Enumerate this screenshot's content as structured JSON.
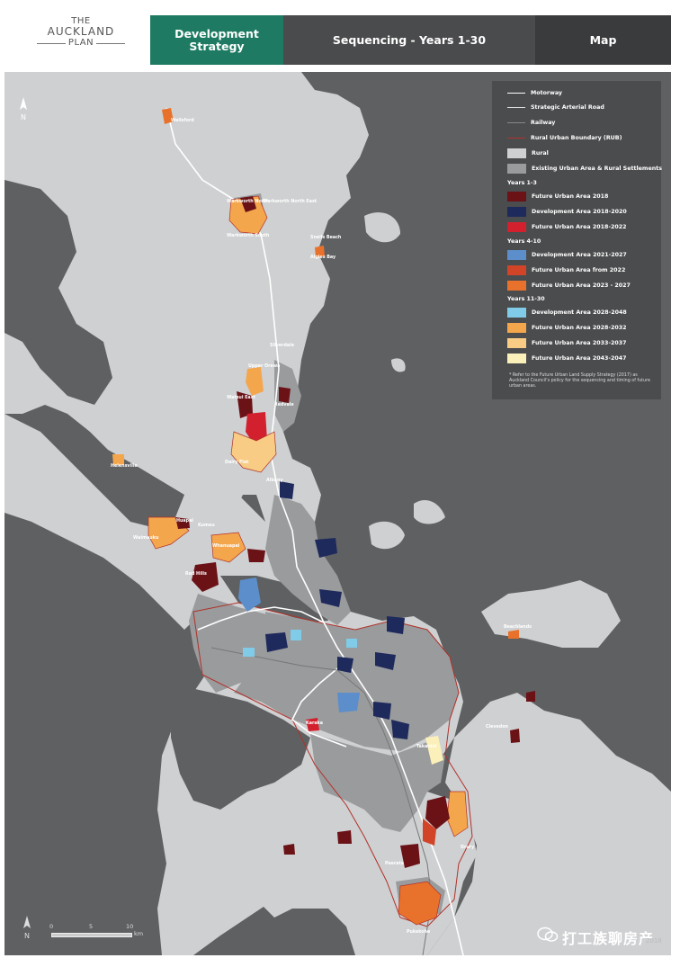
{
  "header": {
    "logo": {
      "line1": "THE",
      "line2": "AUCKLAND",
      "line3": "PLAN"
    },
    "tab_dev": "Development Strategy",
    "tab_seq": "Sequencing  -  Years 1-30",
    "tab_map": "Map"
  },
  "legend": {
    "lines": [
      {
        "label": "Motorway",
        "color": "#ffffff"
      },
      {
        "label": "Strategic Arterial Road",
        "color": "#dddddd"
      },
      {
        "label": "Railway",
        "color": "#888888"
      },
      {
        "label": "Rural Urban Boundary (RUB)",
        "color": "#b0322a"
      }
    ],
    "base": [
      {
        "label": "Rural",
        "color": "#cfd0d2"
      },
      {
        "label": "Existing Urban Area & Rural Settlements",
        "color": "#9a9b9d"
      }
    ],
    "sections": [
      {
        "title": "Years 1-3",
        "items": [
          {
            "label": "Future Urban Area 2018",
            "color": "#6b1217"
          },
          {
            "label": "Development Area 2018-2020",
            "color": "#1f2a5c"
          },
          {
            "label": "Future Urban Area 2018-2022",
            "color": "#d2202e"
          }
        ]
      },
      {
        "title": "Years 4-10",
        "items": [
          {
            "label": "Development Area 2021-2027",
            "color": "#5b8ecb"
          },
          {
            "label": "Future Urban Area from 2022",
            "color": "#d24427"
          },
          {
            "label": "Future Urban Area 2023 - 2027",
            "color": "#e8722b"
          }
        ]
      },
      {
        "title": "Years 11-30",
        "items": [
          {
            "label": "Development Area 2028-2048",
            "color": "#7fcbe8"
          },
          {
            "label": "Future Urban Area 2028-2032",
            "color": "#f4a64d"
          },
          {
            "label": "Future Urban Area 2033-2037",
            "color": "#f8cc85"
          },
          {
            "label": "Future Urban Area 2043-2047",
            "color": "#fbf0b9"
          }
        ]
      }
    ],
    "note": "* Refer to the Future Urban Land Supply Strategy (2017) as Auckland Council's policy for the sequencing and timing of future urban areas."
  },
  "colors": {
    "sea": "#5f6062",
    "rural": "#cfd0d2",
    "urban": "#9a9b9d"
  },
  "map": {
    "north_label": "N",
    "scale": {
      "t0": "0",
      "t5": "5",
      "t10": "10",
      "unit": "km"
    },
    "places": [
      "Wellsford",
      "Warkworth North",
      "Warkworth North East",
      "Warkworth South",
      "Algies Bay",
      "Snells Beach",
      "Upper Orewa",
      "Wainui East",
      "Silverdale",
      "Redvale",
      "Dairy Flat",
      "Helensville",
      "Waimauku",
      "Huapai",
      "Kumeu",
      "Whenuapai",
      "Red Hills",
      "Albany",
      "Takanini",
      "Drury",
      "Pukekohe",
      "Paerata",
      "Clevedon",
      "Beachlands",
      "Karaka"
    ]
  },
  "watermark": {
    "text": "打工族聊房产",
    "sub": "2018"
  }
}
